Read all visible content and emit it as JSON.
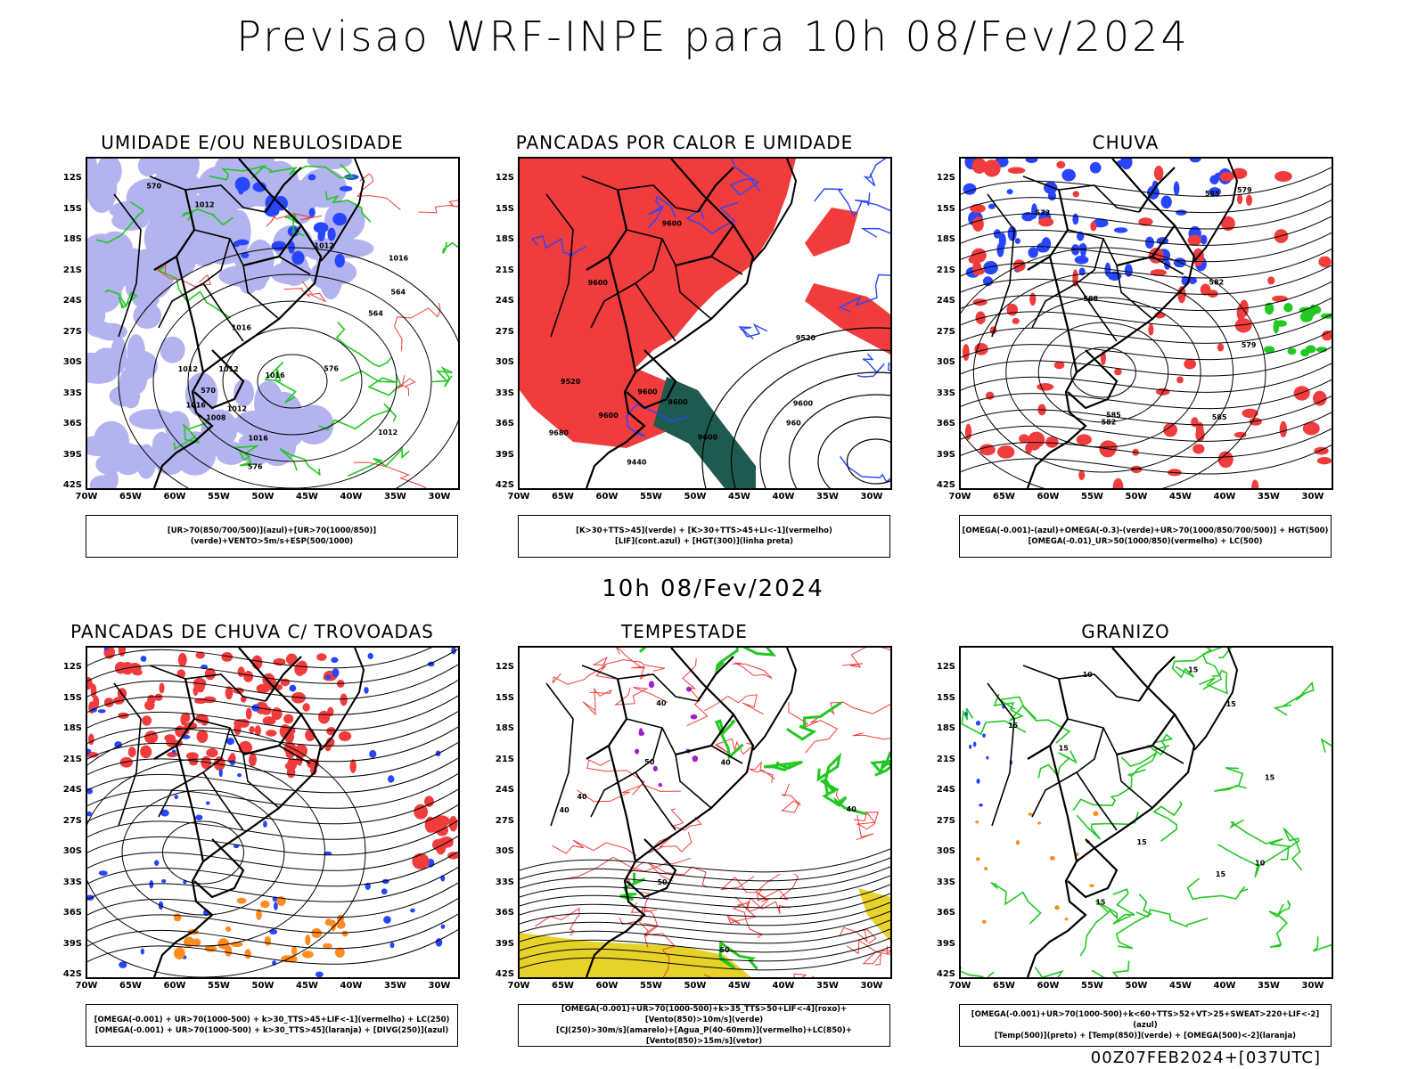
{
  "title": "Previsao WRF-INPE  para 10h 08/Fev/2024",
  "subtitle": "10h 08/Fev/2024",
  "footer": "00Z07FEB2024+[037UTC]",
  "lat_labels": [
    "12S",
    "15S",
    "18S",
    "21S",
    "24S",
    "27S",
    "30S",
    "33S",
    "36S",
    "39S",
    "42S"
  ],
  "lon_labels": [
    "70W",
    "65W",
    "60W",
    "55W",
    "50W",
    "45W",
    "40W",
    "35W",
    "30W"
  ],
  "panels": [
    {
      "title": "UMIDADE E/OU NEBULOSIDADE",
      "legend": [
        "[UR>70(850/700/500)](azul)+[UR>70(1000/850)](verde)+VENTO>5m/s+ESP(500/1000)"
      ],
      "labels": [
        "1012",
        "1012",
        "1012",
        "1016",
        "1016",
        "1016",
        "1008",
        "1012",
        "1012",
        "1016",
        "1016",
        "1012",
        "570",
        "576",
        "564",
        "576",
        "570",
        "564"
      ]
    },
    {
      "title": "PANCADAS POR CALOR E UMIDADE",
      "legend": [
        "[K>30+TTS>45](verde) + [K>30+TTS>45+LI<-1](vermelho)",
        "[LIF](cont.azul) + [HGT(300)](linha preta)"
      ],
      "labels": [
        "9680",
        "9600",
        "9600",
        "9600",
        "9600",
        "9520",
        "9520",
        "9440",
        "9600",
        "9600",
        "9600",
        "960"
      ]
    },
    {
      "title": "CHUVA",
      "legend": [
        "[OMEGA(-0.001)-(azul)+OMEGA(-0.3)-(verde)+UR>70(1000/850/700/500)] + HGT(500)",
        "[OMEGA(-0.01)_UR>50(1000/850)(vermelho) + LC(500)"
      ],
      "labels": [
        "585",
        "588",
        "585",
        "582",
        "579",
        "585",
        "579",
        "573",
        "582"
      ]
    },
    {
      "title": "PANCADAS DE CHUVA C/ TROVOADAS",
      "legend": [
        "[OMEGA(-0.001) + UR>70(1000-500) + k>30_TTS>45+LIF<-1](vermelho) + LC(250)",
        "[OMEGA(-0.001) + UR>70(1000-500) + k>30_TTS>45](laranja) + [DIVG(250)](azul)"
      ],
      "labels": []
    },
    {
      "title": "TEMPESTADE",
      "legend": [
        "[OMEGA(-0.001)+UR>70(1000-500)+k>35_TTS>50+LIF<-4](roxo)+[Vento(850)>10m/s](verde)",
        "[CJ(250)>30m/s](amarelo)+[Agua_P(40-60mm)](vermelho)+LC(850)+[Vento(850)>15m/s](vetor)"
      ],
      "labels": [
        "40",
        "50",
        "50",
        "40",
        "40",
        "40",
        "50",
        "40"
      ]
    },
    {
      "title": "GRANIZO",
      "legend": [
        "[OMEGA(-0.001)+UR>70(1000-500)+k<60+TTS>52+VT>25+SWEAT>220+LIF<-2](azul)",
        "[Temp(500)](preto) + [Temp(850)](verde) + [OMEGA(500)<-2](laranja)"
      ],
      "labels": [
        "15",
        "15",
        "15",
        "15",
        "15",
        "15",
        "15",
        "10",
        "10",
        "15"
      ]
    }
  ],
  "colors": {
    "blue_fill": "#b3b3f0",
    "red": "#f03c3c",
    "green": "#22c822",
    "blue": "#2846ff",
    "dark_teal": "#1e5a50",
    "orange": "#ff8c1e",
    "yellow": "#e6d228",
    "purple": "#a020c8"
  }
}
